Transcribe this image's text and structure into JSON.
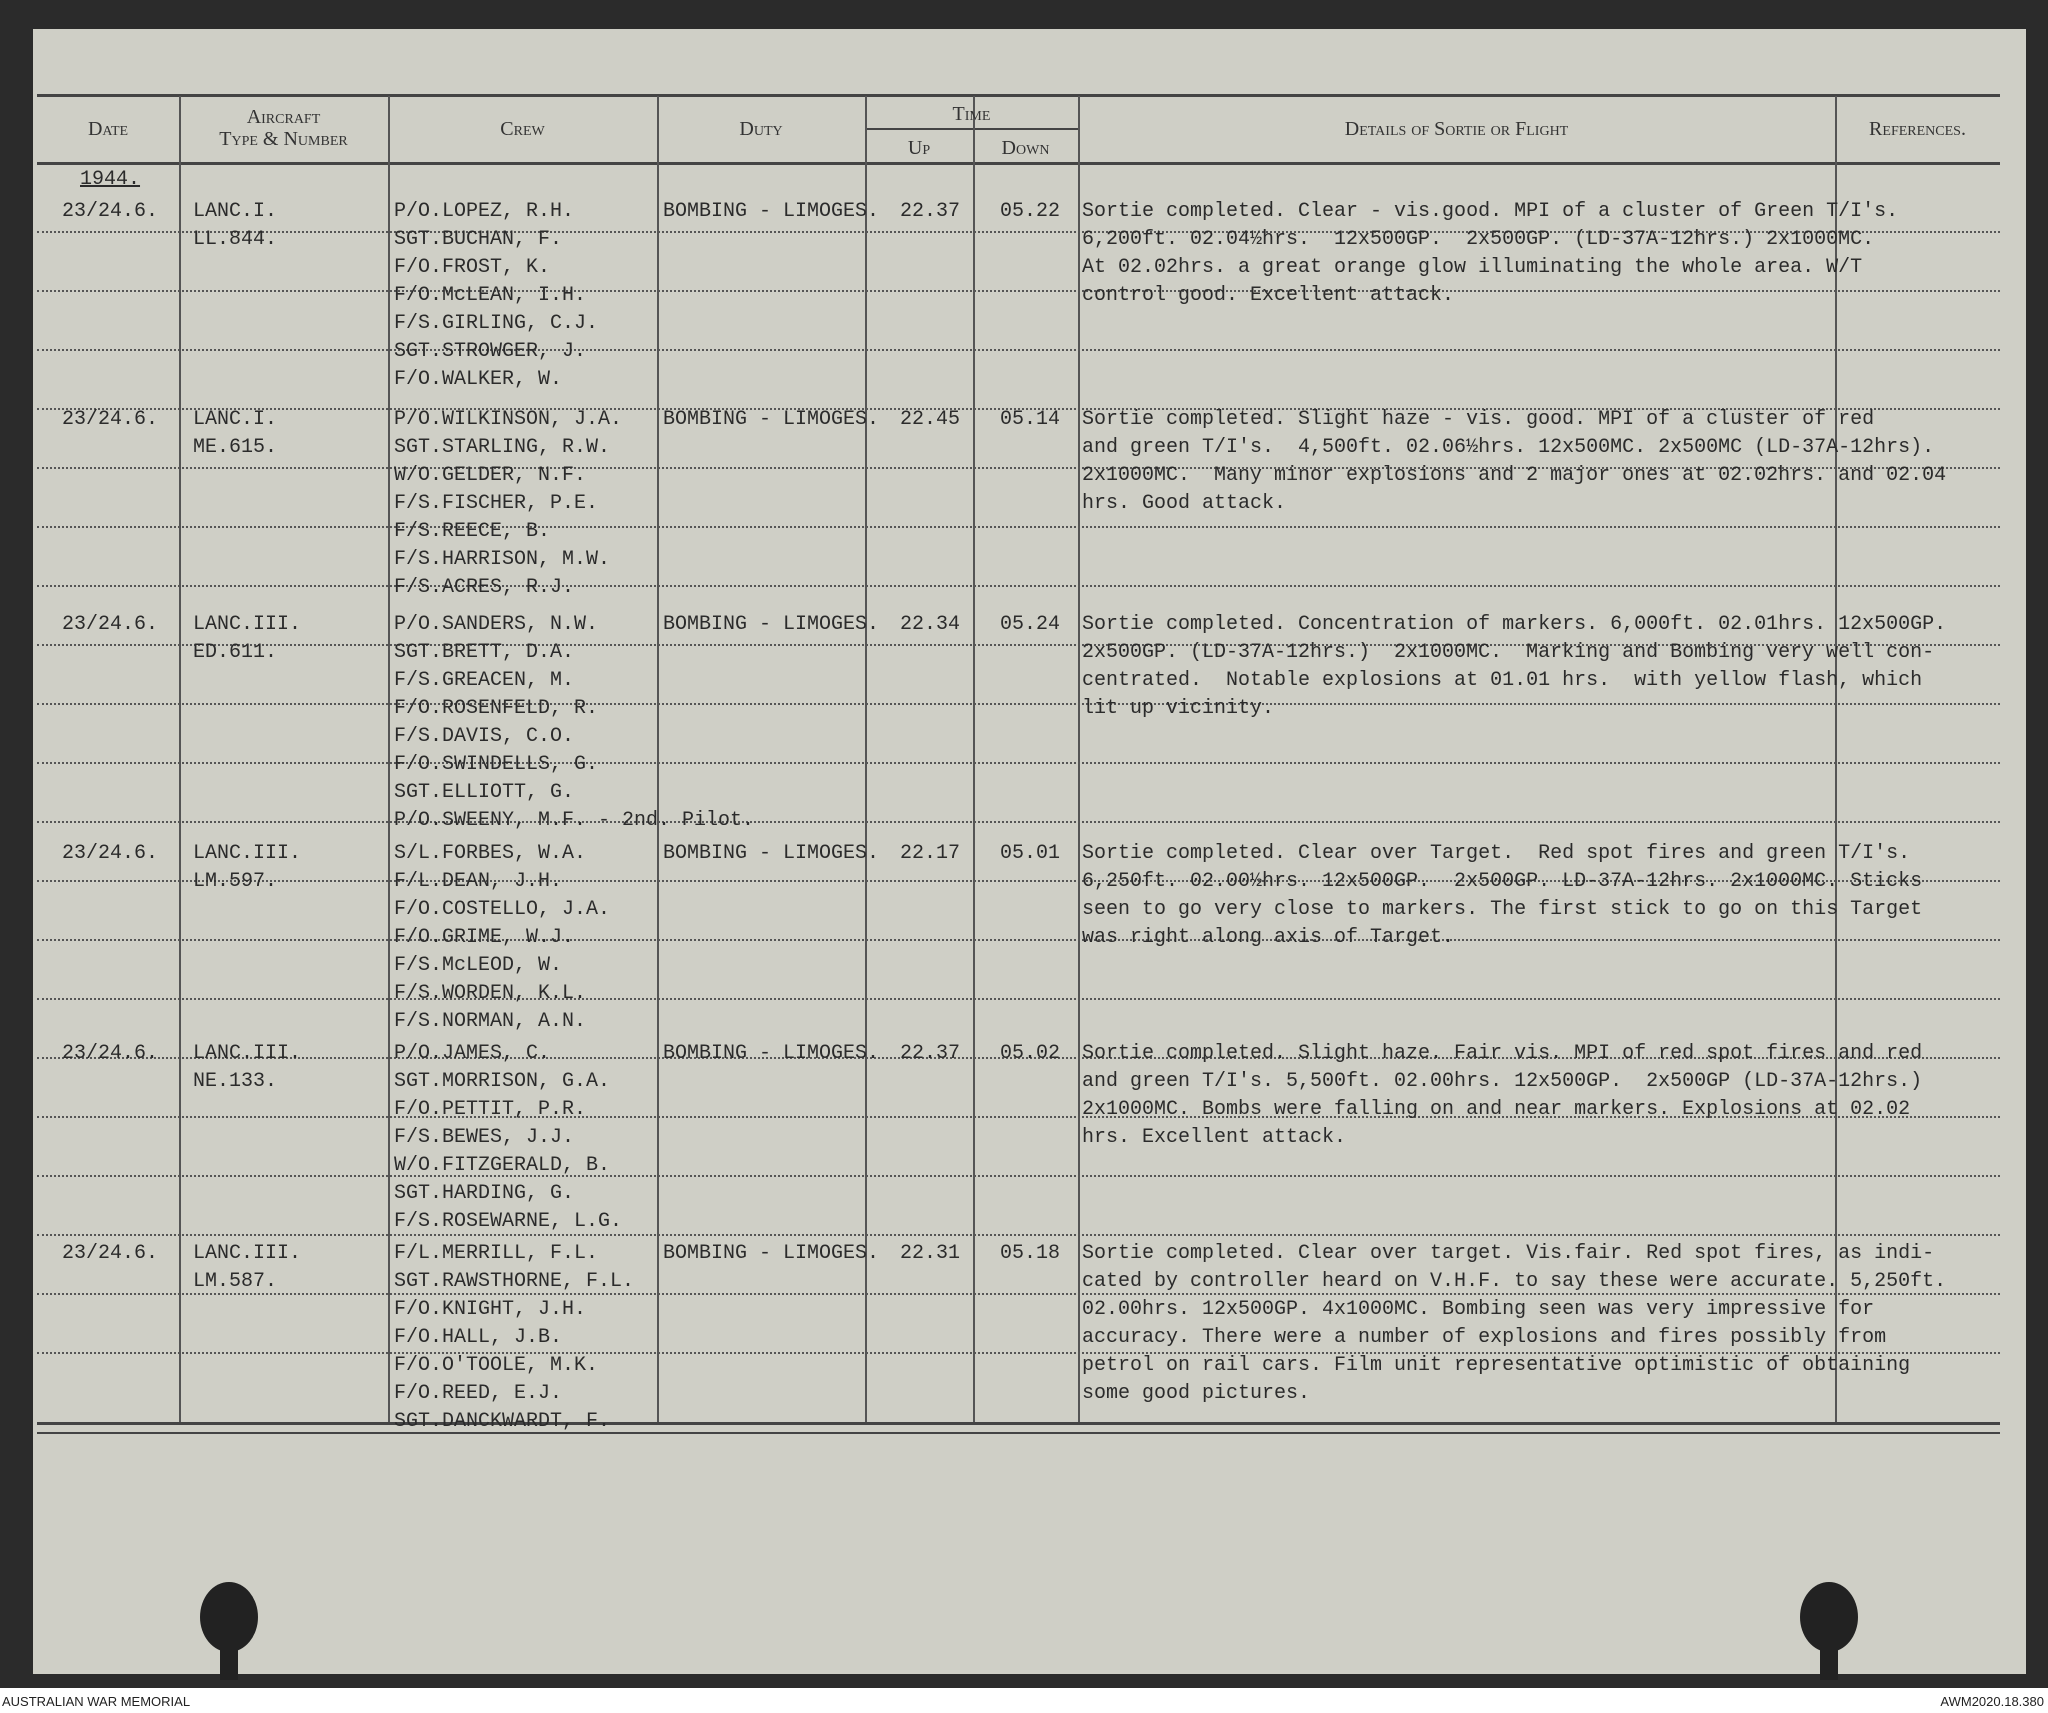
{
  "header": {
    "date": "Date",
    "aircraft": [
      "Aircraft",
      "Type & Number"
    ],
    "crew": "Crew",
    "duty": "Duty",
    "time": "Time",
    "up": "Up",
    "down": "Down",
    "details": "Details of Sortie or Flight",
    "references": "References."
  },
  "year": "1944.",
  "entries": [
    {
      "date": "23/24.6.",
      "aircraft": [
        "LANC.I.",
        "LL.844."
      ],
      "crew": [
        "P/O.LOPEZ, R.H.",
        "SGT.BUCHAN, F.",
        "F/O.FROST, K.",
        "F/O.McLEAN, I.H.",
        "F/S.GIRLING, C.J.",
        "SGT.STROWGER, J.",
        "F/O.WALKER, W."
      ],
      "duty": "BOMBING - LIMOGES.",
      "up": "22.37",
      "down": "05.22",
      "details": [
        "Sortie completed. Clear - vis.good. MPI of a cluster of Green T/I's.",
        "6,200ft. 02.04½hrs.  12x500GP.  2x500GP. (LD-37A-12hrs.) 2x1000MC.",
        "At 02.02hrs. a great orange glow illuminating the whole area. W/T",
        "control good. Excellent attack."
      ]
    },
    {
      "date": "23/24.6.",
      "aircraft": [
        "LANC.I.",
        "ME.615."
      ],
      "crew": [
        "P/O.WILKINSON, J.A.",
        "SGT.STARLING, R.W.",
        "W/O.GELDER, N.F.",
        "F/S.FISCHER, P.E.",
        "F/S.REECE, B.",
        "F/S.HARRISON, M.W.",
        "F/S.ACRES, R.J."
      ],
      "duty": "BOMBING - LIMOGES.",
      "up": "22.45",
      "down": "05.14",
      "details": [
        "Sortie completed. Slight haze - vis. good. MPI of a cluster of red",
        "and green T/I's.  4,500ft. 02.06½hrs. 12x500MC. 2x500MC (LD-37A-12hrs).",
        "2x1000MC.  Many minor explosions and 2 major ones at 02.02hrs. and 02.04",
        "hrs. Good attack."
      ]
    },
    {
      "date": "23/24.6.",
      "aircraft": [
        "LANC.III.",
        "ED.611."
      ],
      "crew": [
        "P/O.SANDERS, N.W.",
        "SGT.BRETT, D.A.",
        "F/S.GREACEN, M.",
        "F/O.ROSENFELD, R.",
        "F/S.DAVIS, C.O.",
        "F/O.SWINDELLS, G.",
        "SGT.ELLIOTT, G.",
        "P/O.SWEENY, M.F. - 2nd. Pilot."
      ],
      "duty": "BOMBING - LIMOGES.",
      "up": "22.34",
      "down": "05.24",
      "details": [
        "Sortie completed. Concentration of markers. 6,000ft. 02.01hrs. 12x500GP.",
        "2x500GP. (LD-37A-12hrs.)  2x1000MC.  Marking and Bombing very well con-",
        "centrated.  Notable explosions at 01.01 hrs.  with yellow flash, which",
        "lit up vicinity."
      ]
    },
    {
      "date": "23/24.6.",
      "aircraft": [
        "LANC.III.",
        "LM.597."
      ],
      "crew": [
        "S/L.FORBES, W.A.",
        "F/L.DEAN, J.H.",
        "F/O.COSTELLO, J.A.",
        "F/O.GRIME, W.J.",
        "F/S.McLEOD, W.",
        "F/S.WORDEN, K.L.",
        "F/S.NORMAN, A.N."
      ],
      "duty": "BOMBING - LIMOGES.",
      "up": "22.17",
      "down": "05.01",
      "details": [
        "Sortie completed. Clear over Target.  Red spot fires and green T/I's.",
        "6,250ft. 02.00½hrs. 12x500GP.  2x500GP. LD-37A-12hrs. 2x1000MC. Sticks",
        "seen to go very close to markers. The first stick to go on this Target",
        "was right along axis of Target."
      ]
    },
    {
      "date": "23/24.6.",
      "aircraft": [
        "LANC.III.",
        "NE.133."
      ],
      "crew": [
        "P/O.JAMES, C.",
        "SGT.MORRISON, G.A.",
        "F/O.PETTIT, P.R.",
        "F/S.BEWES, J.J.",
        "W/O.FITZGERALD, B.",
        "SGT.HARDING, G.",
        "F/S.ROSEWARNE, L.G."
      ],
      "duty": "BOMBING - LIMOGES.",
      "up": "22.37",
      "down": "05.02",
      "details": [
        "Sortie completed. Slight haze. Fair vis. MPI of red spot fires and red",
        "and green T/I's. 5,500ft. 02.00hrs. 12x500GP.  2x500GP (LD-37A-12hrs.)",
        "2x1000MC. Bombs were falling on and near markers. Explosions at 02.02",
        "hrs. Excellent attack."
      ]
    },
    {
      "date": "23/24.6.",
      "aircraft": [
        "LANC.III.",
        "LM.587."
      ],
      "crew": [
        "F/L.MERRILL, F.L.",
        "SGT.RAWSTHORNE, F.L.",
        "F/O.KNIGHT, J.H.",
        "F/O.HALL, J.B.",
        "F/O.O'TOOLE, M.K.",
        "F/O.REED, E.J.",
        "SGT.DANCKWARDT, F."
      ],
      "duty": "BOMBING - LIMOGES.",
      "up": "22.31",
      "down": "05.18",
      "details": [
        "Sortie completed. Clear over target. Vis.fair. Red spot fires, as indi-",
        "cated by controller heard on V.H.F. to say these were accurate. 5,250ft.",
        "02.00hrs. 12x500GP. 4x1000MC. Bombing seen was very impressive for",
        "accuracy. There were a number of explosions and fires possibly from",
        "petrol on rail cars. Film unit representative optimistic of obtaining",
        "some good pictures."
      ]
    }
  ],
  "footer": {
    "left": "AUSTRALIAN WAR MEMORIAL",
    "right": "AWM2020.18.380"
  }
}
